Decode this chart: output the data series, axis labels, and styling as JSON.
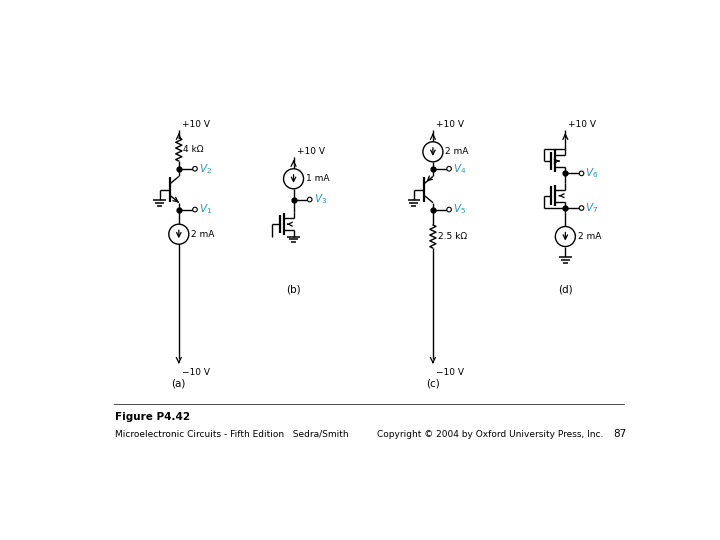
{
  "title": "Figure P4.42",
  "subtitle_left": "Microelectronic Circuits - Fifth Edition   Sedra/Smith",
  "subtitle_right": "Copyright © 2004 by Oxford University Press, Inc.",
  "page_num": "87",
  "label_a": "(a)",
  "label_b": "(b)",
  "label_c": "(c)",
  "label_d": "(d)",
  "v_color": "#2299bb",
  "line_color": "#000000",
  "bg_color": "#ffffff"
}
